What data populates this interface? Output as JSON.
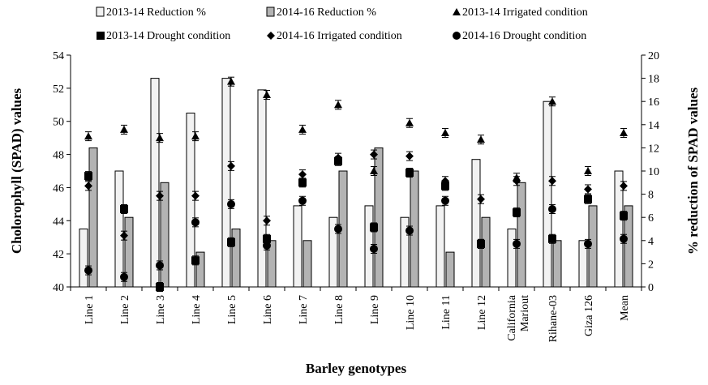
{
  "chart_data": {
    "type": "bar",
    "title": "",
    "xlabel": "Barley genotypes",
    "ylabel_left": "Cholorophyll (SPAD) values",
    "ylabel_right": "% reduction of SPAD values",
    "ylim_left": [
      40,
      54
    ],
    "yticks_left": [
      "40",
      "42",
      "44",
      "46",
      "48",
      "50",
      "52",
      "54"
    ],
    "ylim_right": [
      0,
      20
    ],
    "yticks_right": [
      "0",
      "2",
      "4",
      "6",
      "8",
      "10",
      "12",
      "14",
      "16",
      "18",
      "20"
    ],
    "categories": [
      "Line 1",
      "Line 2",
      "Line 3",
      "Line 4",
      "Line 5",
      "Line 6",
      "Line 7",
      "Line 8",
      "Line 9",
      "Line 10",
      "Line 11",
      "Line 12",
      "California Mariout",
      "Rihane-03",
      "Giza 126",
      "Mean"
    ],
    "bar_series": [
      {
        "name": "2013-14 Reduction %",
        "axis": "right",
        "fill": "#f2f2f2",
        "values": [
          5,
          10,
          18,
          15,
          18,
          17,
          7,
          6,
          7,
          6,
          7,
          11,
          5,
          16,
          4,
          10
        ]
      },
      {
        "name": "2014-16 Reduction %",
        "axis": "right",
        "fill": "#b3b3b3",
        "values": [
          12,
          6,
          9,
          3,
          5,
          4,
          4,
          10,
          12,
          10,
          3,
          6,
          9,
          4,
          7,
          7
        ]
      }
    ],
    "marker_series": [
      {
        "name": "2013-14 Irrigated condition",
        "marker": "triangle",
        "axis": "left",
        "values": [
          49.1,
          49.5,
          49.0,
          49.1,
          52.4,
          51.6,
          49.5,
          51.0,
          47.0,
          49.9,
          49.3,
          48.9,
          46.6,
          51.2,
          47.0,
          49.3
        ]
      },
      {
        "name": "2013-14 Drought condition",
        "marker": "square",
        "axis": "left",
        "values": [
          46.7,
          44.7,
          40.0,
          41.6,
          42.7,
          42.9,
          46.3,
          47.6,
          43.6,
          46.9,
          46.1,
          42.6,
          44.5,
          42.9,
          45.3,
          44.3
        ]
      },
      {
        "name": "2014-16 Irrigated condition",
        "marker": "diamond",
        "axis": "left",
        "values": [
          46.1,
          43.1,
          45.5,
          45.5,
          47.3,
          44.0,
          46.8,
          47.8,
          48.0,
          47.9,
          46.4,
          45.3,
          46.4,
          46.4,
          45.9,
          46.1
        ]
      },
      {
        "name": "2014-16 Drought condition",
        "marker": "circle",
        "axis": "left",
        "values": [
          41.0,
          40.6,
          41.3,
          43.9,
          45.0,
          42.5,
          45.2,
          43.5,
          42.3,
          43.4,
          45.2,
          42.6,
          42.6,
          44.7,
          42.6,
          42.9
        ]
      }
    ],
    "legend_position": "top",
    "grid": false
  }
}
